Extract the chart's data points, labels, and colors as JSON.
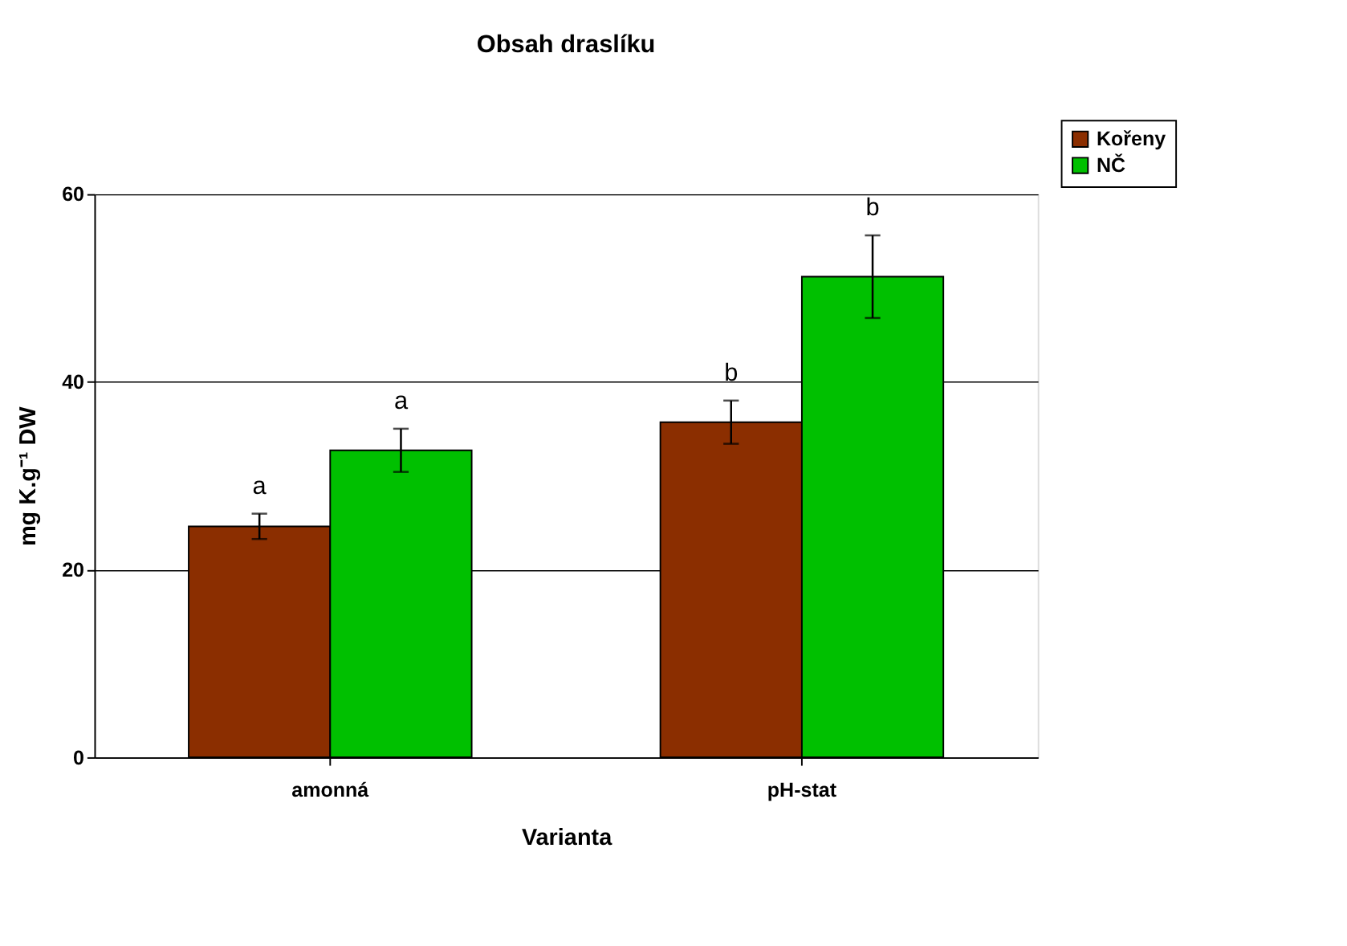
{
  "chart_data": {
    "type": "bar",
    "title": "Obsah draslíku",
    "xlabel": "Varianta",
    "ylabel": "mg K.g⁻¹ DW",
    "categories": [
      "amonná",
      "pH-stat"
    ],
    "series": [
      {
        "name": "Kořeny",
        "color": "#8b2e00",
        "values": [
          24.6,
          35.7
        ],
        "errors": [
          1.35,
          2.3
        ]
      },
      {
        "name": "NČ",
        "color": "#00c000",
        "values": [
          32.7,
          51.2
        ],
        "errors": [
          2.3,
          4.4
        ]
      }
    ],
    "ylim": [
      0,
      60
    ],
    "yticks": [
      0,
      20,
      40,
      60
    ],
    "grid": "y",
    "legend": "top right",
    "annotations": [
      "a",
      "a",
      "b",
      "b"
    ]
  }
}
